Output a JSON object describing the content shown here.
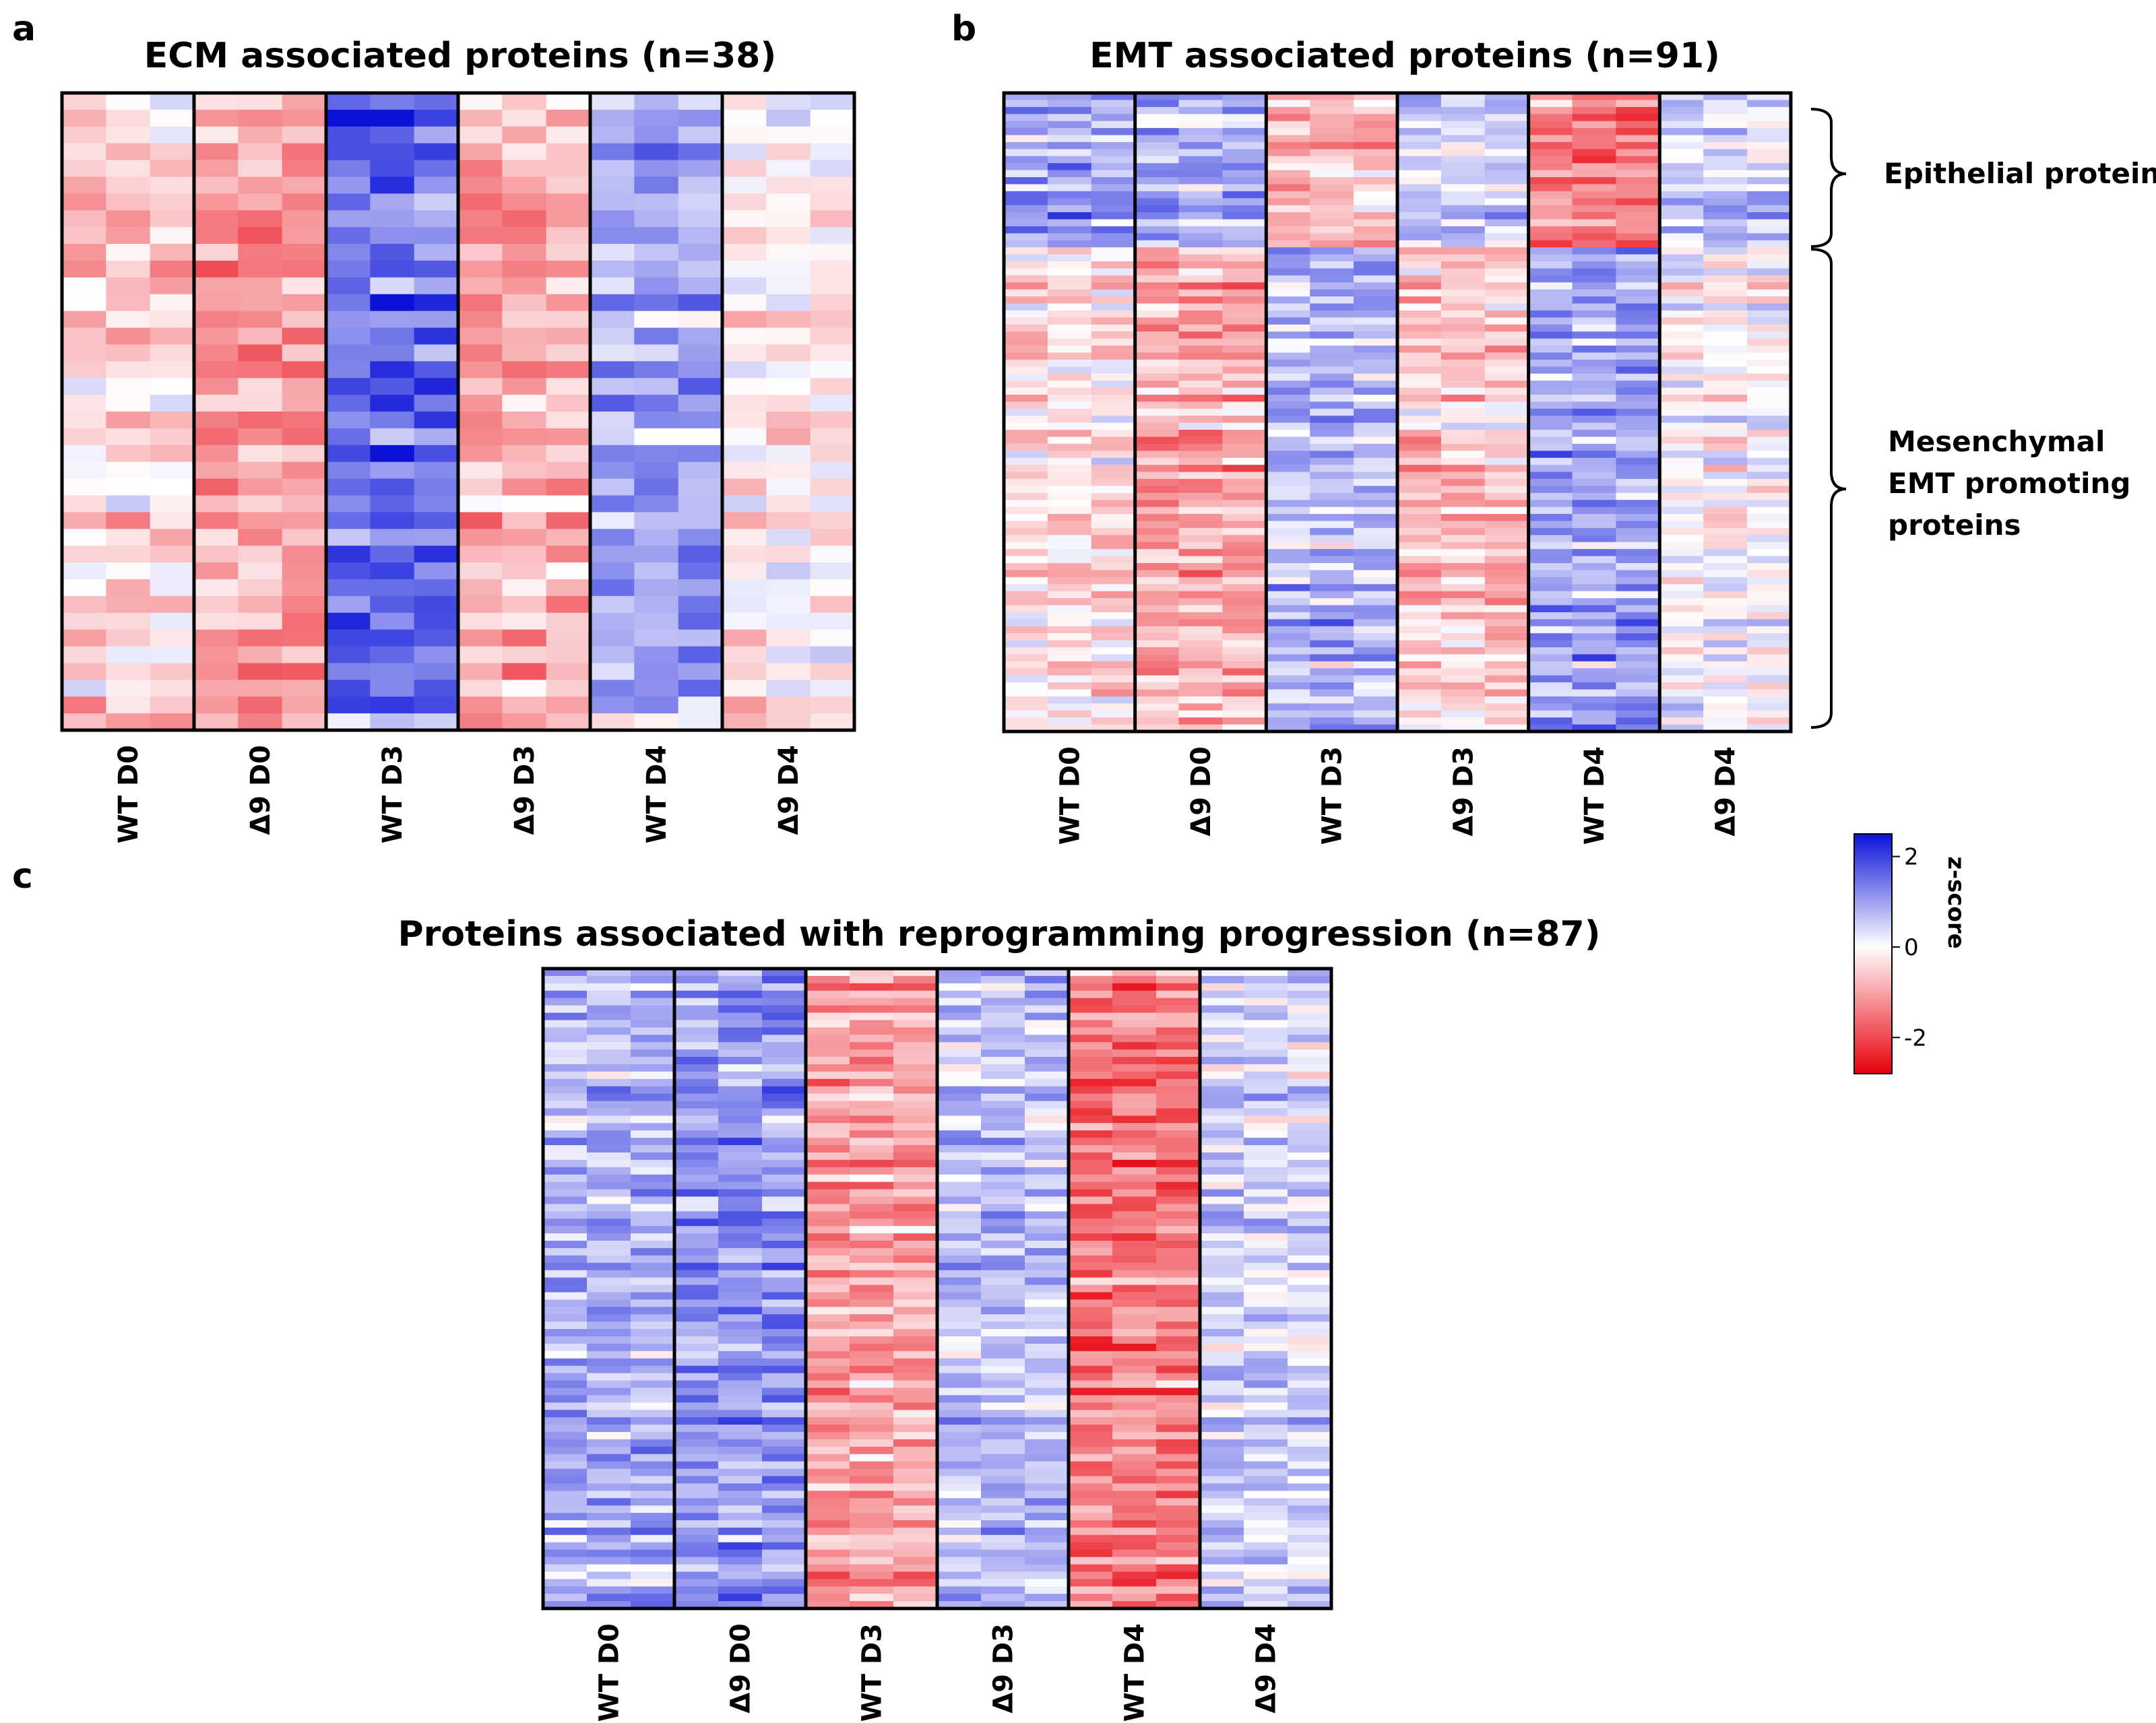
{
  "figure": {
    "panels": [
      {
        "letter": "a"
      },
      {
        "letter": "b"
      },
      {
        "letter": "c"
      }
    ]
  },
  "chart_data": [
    {
      "type": "heatmap",
      "panel": "a",
      "title": "ECM associated proteins (n=38)",
      "columns": [
        "WT D0",
        "Δ9 D0",
        "WT D3",
        "Δ9 D3",
        "WT D4",
        "Δ9 D4"
      ],
      "replicates_per_column": 3,
      "rows": 38,
      "group_mean_zscore": [
        -0.5,
        -1.0,
        1.4,
        -0.8,
        0.8,
        -0.2
      ],
      "value_scale": "z-score"
    },
    {
      "type": "heatmap",
      "panel": "b",
      "title": "EMT associated proteins (n=91)",
      "columns": [
        "WT D0",
        "Δ9 D0",
        "WT D3",
        "Δ9 D3",
        "WT D4",
        "Δ9 D4"
      ],
      "replicates_per_column": 3,
      "rows": 91,
      "row_groups": [
        {
          "label": "Epithelial proteins",
          "rows": 22,
          "group_mean_zscore": [
            1.0,
            0.9,
            -0.6,
            0.5,
            -1.3,
            0.6
          ]
        },
        {
          "label": "Mesenchymal EMT promoting proteins",
          "rows": 69,
          "group_mean_zscore": [
            -0.3,
            -0.9,
            0.7,
            -0.6,
            0.9,
            0.0
          ]
        }
      ],
      "value_scale": "z-score"
    },
    {
      "type": "heatmap",
      "panel": "c",
      "title": "Proteins associated with reprogramming progression (n=87)",
      "columns": [
        "WT D0",
        "Δ9 D0",
        "WT D3",
        "Δ9 D3",
        "WT D4",
        "Δ9 D4"
      ],
      "replicates_per_column": 3,
      "rows": 87,
      "group_mean_zscore": [
        0.7,
        1.0,
        -1.1,
        0.6,
        -1.5,
        0.4
      ],
      "value_scale": "z-score"
    }
  ],
  "colorbar": {
    "title": "z-score",
    "ticks": [
      "2",
      "0",
      "-2"
    ],
    "tick_values": [
      2,
      0,
      -2
    ],
    "range": [
      -2.8,
      2.5
    ],
    "low_color": "#e8000b",
    "mid_color": "#ffffff",
    "high_color": "#0a12d8"
  }
}
